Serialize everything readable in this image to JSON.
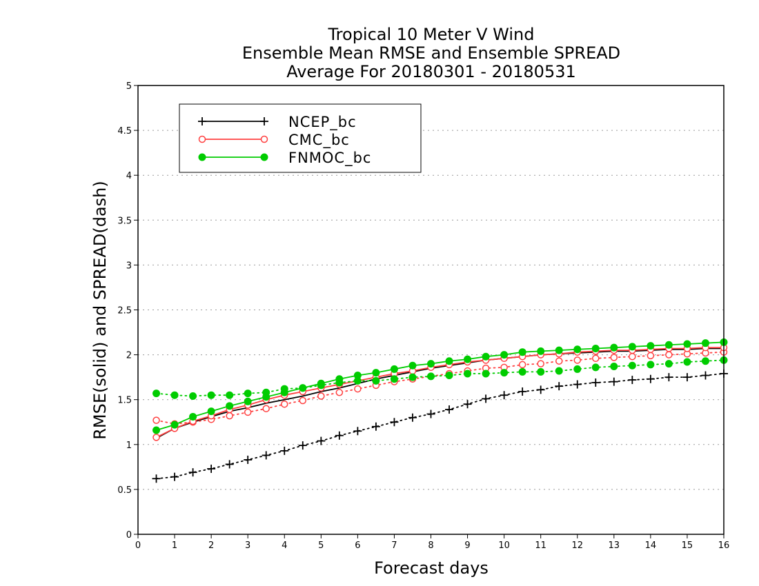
{
  "chart_data": {
    "type": "line",
    "title": [
      "Tropical 10 Meter V Wind",
      "Ensemble Mean RMSE and Ensemble SPREAD",
      "Average For 20180301 - 20180531"
    ],
    "xlabel": "Forecast days",
    "ylabel": "RMSE(solid) and SPREAD(dash)",
    "xlim": [
      0,
      16
    ],
    "ylim": [
      0,
      5
    ],
    "xticks": [
      "0",
      "1",
      "2",
      "3",
      "4",
      "5",
      "6",
      "7",
      "8",
      "9",
      "10",
      "11",
      "12",
      "13",
      "14",
      "15",
      "16"
    ],
    "yticks": [
      "0",
      "0.5",
      "1",
      "1.5",
      "2",
      "2.5",
      "3",
      "3.5",
      "4",
      "4.5",
      "5"
    ],
    "grid": true,
    "legend_position": "top-left",
    "x": [
      0.5,
      1,
      1.5,
      2,
      2.5,
      3,
      3.5,
      4,
      4.5,
      5,
      5.5,
      6,
      6.5,
      7,
      7.5,
      8,
      8.5,
      9,
      9.5,
      10,
      10.5,
      11,
      11.5,
      12,
      12.5,
      13,
      13.5,
      14,
      14.5,
      15,
      15.5,
      16
    ],
    "series": [
      {
        "name": "NCEP_bc",
        "color": "#000000",
        "marker": "plus",
        "rmse": [
          1.07,
          1.18,
          1.25,
          1.31,
          1.37,
          1.41,
          1.46,
          1.5,
          1.54,
          1.59,
          1.63,
          1.68,
          1.73,
          1.77,
          1.81,
          1.85,
          1.88,
          1.91,
          1.94,
          1.96,
          1.98,
          2.0,
          2.01,
          2.02,
          2.03,
          2.04,
          2.04,
          2.05,
          2.06,
          2.06,
          2.07,
          2.07
        ],
        "spread": [
          0.62,
          0.64,
          0.69,
          0.73,
          0.78,
          0.83,
          0.88,
          0.93,
          0.99,
          1.04,
          1.1,
          1.15,
          1.2,
          1.25,
          1.3,
          1.34,
          1.39,
          1.45,
          1.51,
          1.55,
          1.59,
          1.61,
          1.65,
          1.67,
          1.69,
          1.7,
          1.72,
          1.73,
          1.75,
          1.75,
          1.77,
          1.79
        ]
      },
      {
        "name": "CMC_bc",
        "color": "#ff4040",
        "marker": "open-circle",
        "rmse": [
          1.08,
          1.18,
          1.26,
          1.32,
          1.39,
          1.44,
          1.5,
          1.55,
          1.59,
          1.63,
          1.67,
          1.71,
          1.75,
          1.79,
          1.82,
          1.86,
          1.89,
          1.92,
          1.94,
          1.96,
          1.98,
          2.0,
          2.01,
          2.03,
          2.04,
          2.05,
          2.05,
          2.06,
          2.07,
          2.07,
          2.08,
          2.08
        ],
        "spread": [
          1.27,
          1.23,
          1.25,
          1.28,
          1.32,
          1.36,
          1.4,
          1.45,
          1.49,
          1.54,
          1.58,
          1.62,
          1.66,
          1.7,
          1.73,
          1.76,
          1.79,
          1.82,
          1.85,
          1.86,
          1.89,
          1.9,
          1.93,
          1.94,
          1.96,
          1.97,
          1.98,
          1.99,
          2.0,
          2.01,
          2.02,
          2.03
        ]
      },
      {
        "name": "FNMOC_bc",
        "color": "#00cc00",
        "marker": "filled-circle",
        "rmse": [
          1.16,
          1.22,
          1.31,
          1.37,
          1.43,
          1.48,
          1.53,
          1.58,
          1.63,
          1.68,
          1.73,
          1.77,
          1.8,
          1.84,
          1.88,
          1.9,
          1.93,
          1.95,
          1.98,
          2.0,
          2.03,
          2.04,
          2.05,
          2.06,
          2.07,
          2.08,
          2.09,
          2.1,
          2.11,
          2.12,
          2.13,
          2.14
        ],
        "spread": [
          1.57,
          1.55,
          1.54,
          1.55,
          1.55,
          1.57,
          1.58,
          1.62,
          1.63,
          1.66,
          1.69,
          1.71,
          1.71,
          1.73,
          1.75,
          1.76,
          1.77,
          1.79,
          1.79,
          1.8,
          1.81,
          1.81,
          1.82,
          1.84,
          1.86,
          1.87,
          1.88,
          1.89,
          1.9,
          1.92,
          1.93,
          1.94
        ]
      }
    ]
  }
}
